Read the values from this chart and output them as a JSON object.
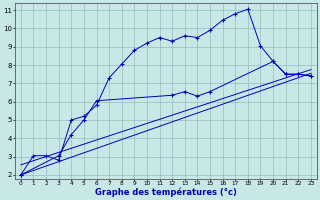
{
  "xlabel": "Graphe des températures (°c)",
  "bg_color": "#c8e8e8",
  "line_color": "#0000bb",
  "grid_color": "#99bbbb",
  "axis_label_color": "#0000bb",
  "xlim": [
    -0.5,
    23.5
  ],
  "ylim": [
    1.8,
    11.4
  ],
  "xticks": [
    0,
    1,
    2,
    3,
    4,
    5,
    6,
    7,
    8,
    9,
    10,
    11,
    12,
    13,
    14,
    15,
    16,
    17,
    18,
    19,
    20,
    21,
    22,
    23
  ],
  "yticks": [
    2,
    3,
    4,
    5,
    6,
    7,
    8,
    9,
    10,
    11
  ],
  "line1_x": [
    0,
    1,
    2,
    3,
    4,
    5,
    6,
    7,
    8,
    9,
    10,
    11,
    12,
    13,
    14,
    15,
    16,
    17,
    18,
    19,
    20,
    21,
    22,
    23
  ],
  "line1_y": [
    2.0,
    3.05,
    3.05,
    2.8,
    5.0,
    5.2,
    5.8,
    7.3,
    8.05,
    8.8,
    9.2,
    9.5,
    9.3,
    9.6,
    9.5,
    9.9,
    10.45,
    10.8,
    11.05,
    9.05,
    8.2,
    7.5,
    7.5,
    7.4
  ],
  "line2_x": [
    0,
    3,
    4,
    5,
    6,
    12,
    13,
    14,
    15,
    20,
    21,
    22,
    23
  ],
  "line2_y": [
    2.0,
    3.05,
    4.2,
    5.0,
    6.05,
    6.35,
    6.55,
    6.3,
    6.55,
    8.2,
    7.5,
    7.5,
    7.4
  ],
  "line3_x": [
    0,
    23
  ],
  "line3_y": [
    2.0,
    7.55
  ],
  "line4_x": [
    0,
    23
  ],
  "line4_y": [
    2.55,
    7.75
  ]
}
